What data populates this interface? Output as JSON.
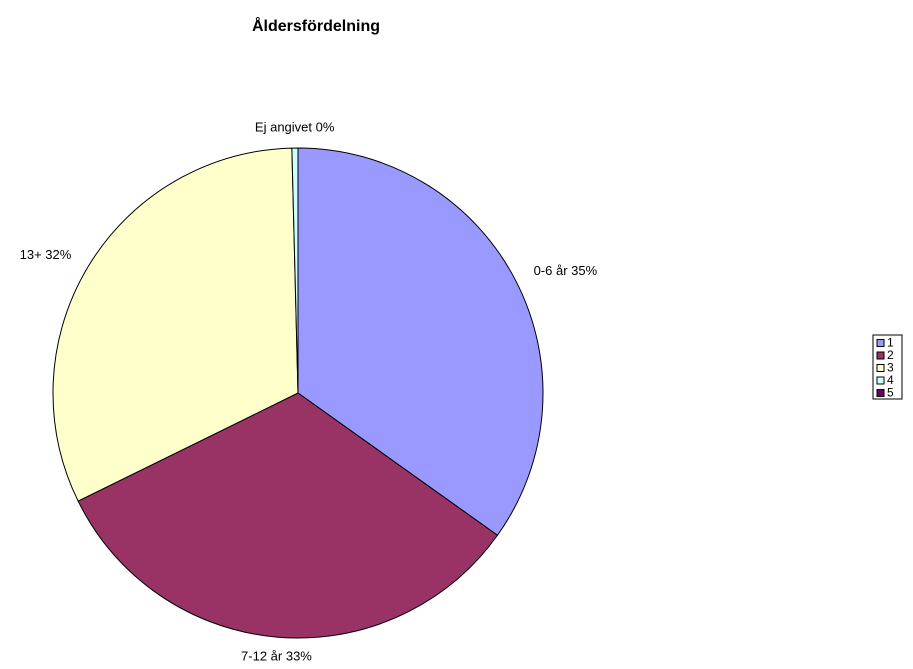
{
  "chart_data": {
    "type": "pie",
    "title": "Åldersfördelning",
    "categories": [
      "1",
      "2",
      "3",
      "4",
      "5"
    ],
    "values": [
      35,
      33,
      32,
      0.4,
      0
    ],
    "value_labels": [
      "0-6 år 35%",
      "7-12 år 33%",
      "13+ 32%",
      "Ej angivet 0%",
      null
    ],
    "colors": [
      "#9999FF",
      "#993366",
      "#FFFFCC",
      "#CCFFFF",
      "#660066"
    ],
    "legend": "right"
  }
}
